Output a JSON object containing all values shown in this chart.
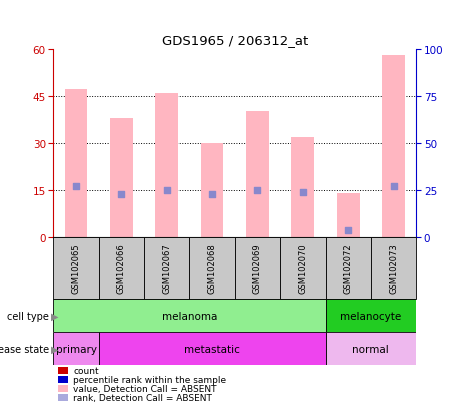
{
  "title": "GDS1965 / 206312_at",
  "samples": [
    "GSM102065",
    "GSM102066",
    "GSM102067",
    "GSM102068",
    "GSM102069",
    "GSM102070",
    "GSM102072",
    "GSM102073"
  ],
  "pink_bar_heights": [
    47,
    38,
    46,
    30,
    40,
    32,
    14,
    58
  ],
  "blue_dot_positions": [
    27,
    23,
    25,
    23,
    25,
    24,
    4,
    27
  ],
  "ylim_left": [
    0,
    60
  ],
  "ylim_right": [
    0,
    100
  ],
  "yticks_left": [
    0,
    15,
    30,
    45,
    60
  ],
  "yticks_right": [
    0,
    25,
    50,
    75,
    100
  ],
  "cell_type_groups": [
    {
      "label": "melanoma",
      "start": 0,
      "end": 6,
      "color": "#90EE90"
    },
    {
      "label": "melanocyte",
      "start": 6,
      "end": 8,
      "color": "#22CC22"
    }
  ],
  "disease_state_groups": [
    {
      "label": "primary",
      "start": 0,
      "end": 1,
      "color": "#EE88EE"
    },
    {
      "label": "metastatic",
      "start": 1,
      "end": 6,
      "color": "#EE44EE"
    },
    {
      "label": "normal",
      "start": 6,
      "end": 8,
      "color": "#EEB8EE"
    }
  ],
  "pink_bar_color": "#FFB6C1",
  "blue_dot_color": "#8888CC",
  "left_axis_color": "#CC0000",
  "right_axis_color": "#0000CC",
  "grid_color": "black",
  "bg_color": "white",
  "plot_bg_color": "white",
  "sample_box_color": "#C8C8C8",
  "legend_items": [
    {
      "label": "count",
      "color": "#CC0000"
    },
    {
      "label": "percentile rank within the sample",
      "color": "#0000CC"
    },
    {
      "label": "value, Detection Call = ABSENT",
      "color": "#FFB6C1"
    },
    {
      "label": "rank, Detection Call = ABSENT",
      "color": "#AAAADD"
    }
  ]
}
